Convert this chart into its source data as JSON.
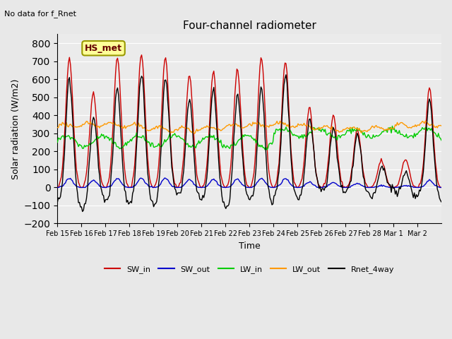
{
  "title": "Four-channel radiometer",
  "xlabel": "Time",
  "ylabel": "Solar radiation (W/m2)",
  "top_left_text": "No data for f_Rnet",
  "station_label": "HS_met",
  "ylim": [
    -200,
    850
  ],
  "yticks": [
    -200,
    -100,
    0,
    100,
    200,
    300,
    400,
    500,
    600,
    700,
    800
  ],
  "x_tick_labels": [
    "Feb 15",
    "Feb 16",
    "Feb 17",
    "Feb 18",
    "Feb 19",
    "Feb 20",
    "Feb 21",
    "Feb 22",
    "Feb 23",
    "Feb 24",
    "Feb 25",
    "Feb 26",
    "Feb 27",
    "Feb 28",
    "Mar 1",
    "Mar 2"
  ],
  "colors": {
    "SW_in": "#cc0000",
    "SW_out": "#0000cc",
    "LW_in": "#00cc00",
    "LW_out": "#ff9900",
    "Rnet_4way": "#000000"
  },
  "legend_labels": [
    "SW_in",
    "SW_out",
    "LW_in",
    "LW_out",
    "Rnet_4way"
  ],
  "bg_color": "#e8e8e8",
  "plot_bg_color": "#ebebeb",
  "n_days": 16,
  "sw_in_peaks": [
    720,
    530,
    720,
    740,
    720,
    625,
    640,
    650,
    720,
    700,
    440,
    400,
    320,
    150,
    160,
    550
  ]
}
